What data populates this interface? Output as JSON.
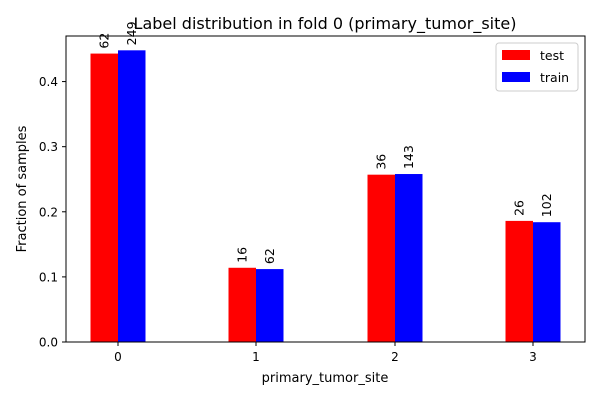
{
  "chart_data": {
    "type": "bar",
    "title": "Label distribution in fold 0 (primary_tumor_site)",
    "xlabel": "primary_tumor_site",
    "ylabel": "Fraction of samples",
    "categories": [
      "0",
      "1",
      "2",
      "3"
    ],
    "ylim": [
      0,
      0.47
    ],
    "yticks": [
      "0.0",
      "0.1",
      "0.2",
      "0.3",
      "0.4"
    ],
    "grid": false,
    "legend_position": "top-right",
    "series": [
      {
        "name": "test",
        "color": "#ff0000",
        "values": [
          0.443,
          0.114,
          0.257,
          0.186
        ],
        "labels": [
          "62",
          "16",
          "36",
          "26"
        ]
      },
      {
        "name": "train",
        "color": "#0000ff",
        "values": [
          0.448,
          0.112,
          0.258,
          0.184
        ],
        "labels": [
          "249",
          "62",
          "143",
          "102"
        ]
      }
    ]
  }
}
